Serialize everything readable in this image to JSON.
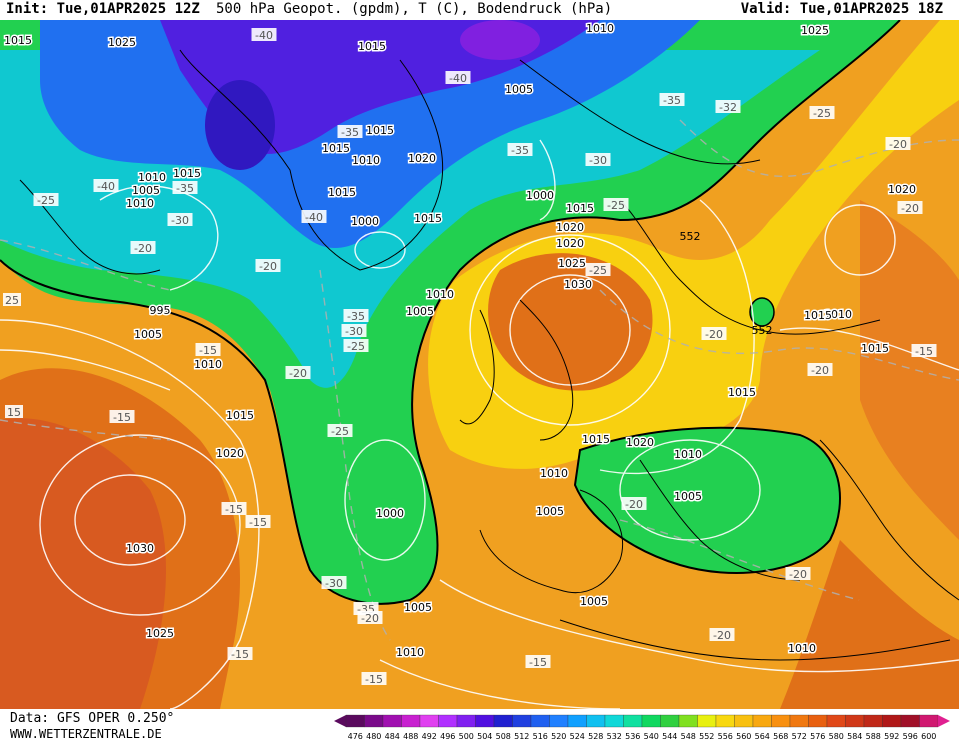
{
  "header": {
    "init": "Init: Tue,01APR2025 12Z",
    "title": "500 hPa Geopot. (gpdm), T (C), Bodendruck (hPa)",
    "valid": "Valid: Tue,01APR2025 18Z"
  },
  "footer": {
    "data_source": "Data: GFS OPER 0.250°",
    "website": "WWW.WETTERZENTRALE.DE"
  },
  "legend": {
    "values": [
      "476",
      "480",
      "484",
      "488",
      "492",
      "496",
      "500",
      "504",
      "508",
      "512",
      "516",
      "520",
      "524",
      "528",
      "532",
      "536",
      "540",
      "544",
      "548",
      "552",
      "556",
      "560",
      "564",
      "568",
      "572",
      "576",
      "580",
      "584",
      "588",
      "592",
      "596",
      "600"
    ],
    "colors": [
      "#5a0a5e",
      "#7a0a8a",
      "#a010b0",
      "#c820d0",
      "#e040f0",
      "#b030ff",
      "#8020f0",
      "#5010e0",
      "#2020d0",
      "#2040e0",
      "#2060f0",
      "#2080ff",
      "#10a0ff",
      "#10c0f0",
      "#10d8d8",
      "#10e0a0",
      "#10d860",
      "#30d040",
      "#80e020",
      "#e8f010",
      "#f8d810",
      "#f8c010",
      "#f8a810",
      "#f89010",
      "#f07810",
      "#e86010",
      "#e04818",
      "#d03818",
      "#c02818",
      "#b01818",
      "#a01028",
      "#d01870"
    ]
  },
  "map": {
    "pressure_labels": [
      {
        "text": "1015"
      },
      {
        "text": "1025"
      },
      {
        "text": "1015"
      },
      {
        "text": "1010"
      },
      {
        "text": "1025"
      },
      {
        "text": "1005"
      },
      {
        "text": "1015"
      },
      {
        "text": "1015"
      },
      {
        "text": "1010"
      },
      {
        "text": "1020"
      },
      {
        "text": "1010"
      },
      {
        "text": "1015"
      },
      {
        "text": "1005"
      },
      {
        "text": "1000"
      },
      {
        "text": "1015"
      },
      {
        "text": "1010"
      },
      {
        "text": "1015"
      },
      {
        "text": "1020"
      },
      {
        "text": "1000"
      },
      {
        "text": "1015"
      },
      {
        "text": "1020"
      },
      {
        "text": "1025"
      },
      {
        "text": "1030"
      },
      {
        "text": "995"
      },
      {
        "text": "1005"
      },
      {
        "text": "1010"
      },
      {
        "text": "1005"
      },
      {
        "text": "1010"
      },
      {
        "text": "1015"
      },
      {
        "text": "1020"
      },
      {
        "text": "1000"
      },
      {
        "text": "1030"
      },
      {
        "text": "1010"
      },
      {
        "text": "1015"
      },
      {
        "text": "1020"
      },
      {
        "text": "1010"
      },
      {
        "text": "1005"
      },
      {
        "text": "1005"
      },
      {
        "text": "1005"
      },
      {
        "text": "1005"
      },
      {
        "text": "1025"
      },
      {
        "text": "1010"
      },
      {
        "text": "1010"
      },
      {
        "text": "1015"
      },
      {
        "text": "1010"
      },
      {
        "text": "1015"
      },
      {
        "text": "1025"
      },
      {
        "text": "1020"
      },
      {
        "text": "1015"
      }
    ],
    "temperature_labels": [
      {
        "text": "-40"
      },
      {
        "text": "-40"
      },
      {
        "text": "-35"
      },
      {
        "text": "-35"
      },
      {
        "text": "-35"
      },
      {
        "text": "-32"
      },
      {
        "text": "-25"
      },
      {
        "text": "-40"
      },
      {
        "text": "-35"
      },
      {
        "text": "-25"
      },
      {
        "text": "-30"
      },
      {
        "text": "-40"
      },
      {
        "text": "-30"
      },
      {
        "text": "-20"
      },
      {
        "text": "-25"
      },
      {
        "text": "-20"
      },
      {
        "text": "-20"
      },
      {
        "text": "-20"
      },
      {
        "text": "-35"
      },
      {
        "text": "-30"
      },
      {
        "text": "-25"
      },
      {
        "text": "-15"
      },
      {
        "text": "-20"
      },
      {
        "text": "-25"
      },
      {
        "text": "-20"
      },
      {
        "text": "-20"
      },
      {
        "text": "-15"
      },
      {
        "text": "-15"
      },
      {
        "text": "-15"
      },
      {
        "text": "-30"
      },
      {
        "text": "-35"
      },
      {
        "text": "-20"
      },
      {
        "text": "-20"
      },
      {
        "text": "-20"
      },
      {
        "text": "-15"
      },
      {
        "text": "-15"
      },
      {
        "text": "-15"
      },
      {
        "text": "-15"
      },
      {
        "text": "-20"
      },
      {
        "text": "-25"
      },
      {
        "text": "15"
      },
      {
        "text": "25"
      }
    ],
    "geopotential_labels": [
      {
        "text": "552"
      },
      {
        "text": "552"
      }
    ],
    "colors": {
      "green_552": "#22d050",
      "yellow": "#f8d010",
      "orange": "#f0a020",
      "dark_orange": "#e07018",
      "red_orange": "#d85a20",
      "blue": "#2060e0",
      "purple": "#6020e0",
      "isobar": "#ffffff",
      "isotherm": "#b0b0b0",
      "coast": "#000000"
    }
  }
}
